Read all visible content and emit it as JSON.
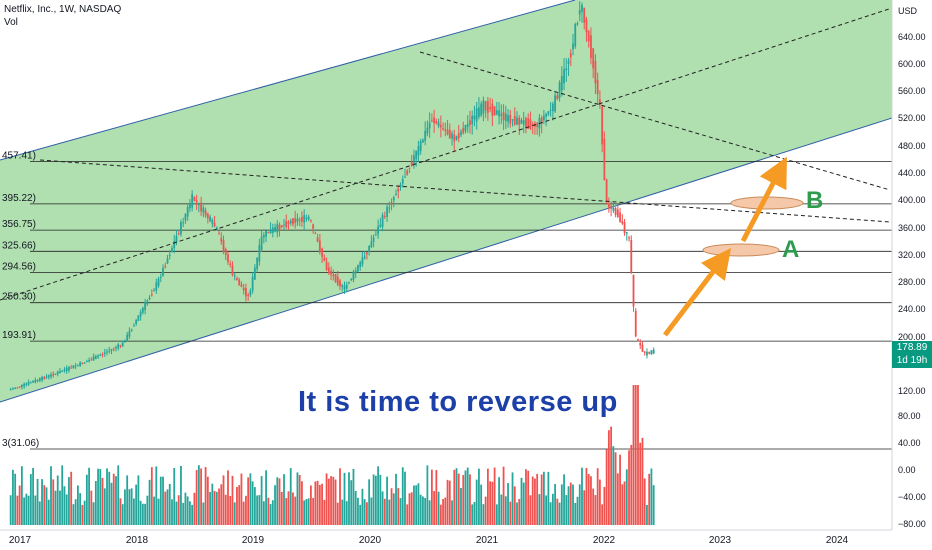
{
  "header": {
    "title": "Netflix, Inc., 1W, NASDAQ",
    "subtitle": "Vol"
  },
  "axis_currency": "USD",
  "last_price": {
    "value": "178.89",
    "countdown": "1d 19h",
    "color": "#089981"
  },
  "annotation_text": "It is time to reverse up",
  "target_labels": [
    "A",
    "B"
  ],
  "colors": {
    "up": "#26a69a",
    "down": "#ef5350",
    "channel_fill": "#8fd18f",
    "channel_line": "#2f5fa8",
    "arrow": "#f59a23",
    "ellipse": "#f4c8a8",
    "annotation": "#1c3fa8",
    "label": "#2e9b4f"
  },
  "chart_data": {
    "type": "candlestick",
    "title": "Netflix, Inc., 1W, NASDAQ",
    "x_ticks": [
      "2017",
      "2018",
      "2019",
      "2020",
      "2021",
      "2022",
      "2023",
      "2024"
    ],
    "y_ticks": [
      "640.00",
      "600.00",
      "560.00",
      "520.00",
      "480.00",
      "440.00",
      "400.00",
      "360.00",
      "320.00",
      "280.00",
      "240.00",
      "200.00",
      "160.00",
      "120.00",
      "80.00",
      "40.00",
      "0.00",
      "−40.00",
      "−80.00"
    ],
    "ylim": [
      -80,
      665
    ],
    "price_path": [
      {
        "t": 2016.92,
        "v": 122
      },
      {
        "t": 2017.3,
        "v": 145
      },
      {
        "t": 2017.6,
        "v": 165
      },
      {
        "t": 2017.9,
        "v": 190
      },
      {
        "t": 2018.2,
        "v": 280
      },
      {
        "t": 2018.5,
        "v": 405
      },
      {
        "t": 2018.7,
        "v": 360
      },
      {
        "t": 2018.85,
        "v": 290
      },
      {
        "t": 2018.98,
        "v": 258
      },
      {
        "t": 2019.1,
        "v": 350
      },
      {
        "t": 2019.35,
        "v": 370
      },
      {
        "t": 2019.5,
        "v": 375
      },
      {
        "t": 2019.65,
        "v": 300
      },
      {
        "t": 2019.8,
        "v": 270
      },
      {
        "t": 2019.98,
        "v": 320
      },
      {
        "t": 2020.15,
        "v": 380
      },
      {
        "t": 2020.3,
        "v": 430
      },
      {
        "t": 2020.45,
        "v": 480
      },
      {
        "t": 2020.55,
        "v": 520
      },
      {
        "t": 2020.75,
        "v": 490
      },
      {
        "t": 2021.0,
        "v": 540
      },
      {
        "t": 2021.2,
        "v": 520
      },
      {
        "t": 2021.45,
        "v": 510
      },
      {
        "t": 2021.6,
        "v": 540
      },
      {
        "t": 2021.75,
        "v": 620
      },
      {
        "t": 2021.83,
        "v": 690
      },
      {
        "t": 2021.93,
        "v": 610
      },
      {
        "t": 2022.0,
        "v": 530
      },
      {
        "t": 2022.05,
        "v": 395
      },
      {
        "t": 2022.15,
        "v": 380
      },
      {
        "t": 2022.25,
        "v": 340
      },
      {
        "t": 2022.3,
        "v": 200
      },
      {
        "t": 2022.38,
        "v": 175
      },
      {
        "t": 2022.45,
        "v": 178.89
      }
    ],
    "levels": [
      {
        "label": "457.41)",
        "value": 457.41
      },
      {
        "label": "395.22)",
        "value": 395.22
      },
      {
        "label": "356.75)",
        "value": 356.75
      },
      {
        "label": "325.66)",
        "value": 325.66
      },
      {
        "label": "294.56)",
        "value": 294.56
      },
      {
        "label": "250.30)",
        "value": 250.3
      },
      {
        "label": "193.91)",
        "value": 193.91
      },
      {
        "label": "3(31.06)",
        "value": 31.06
      }
    ],
    "current_price": 178.89
  }
}
